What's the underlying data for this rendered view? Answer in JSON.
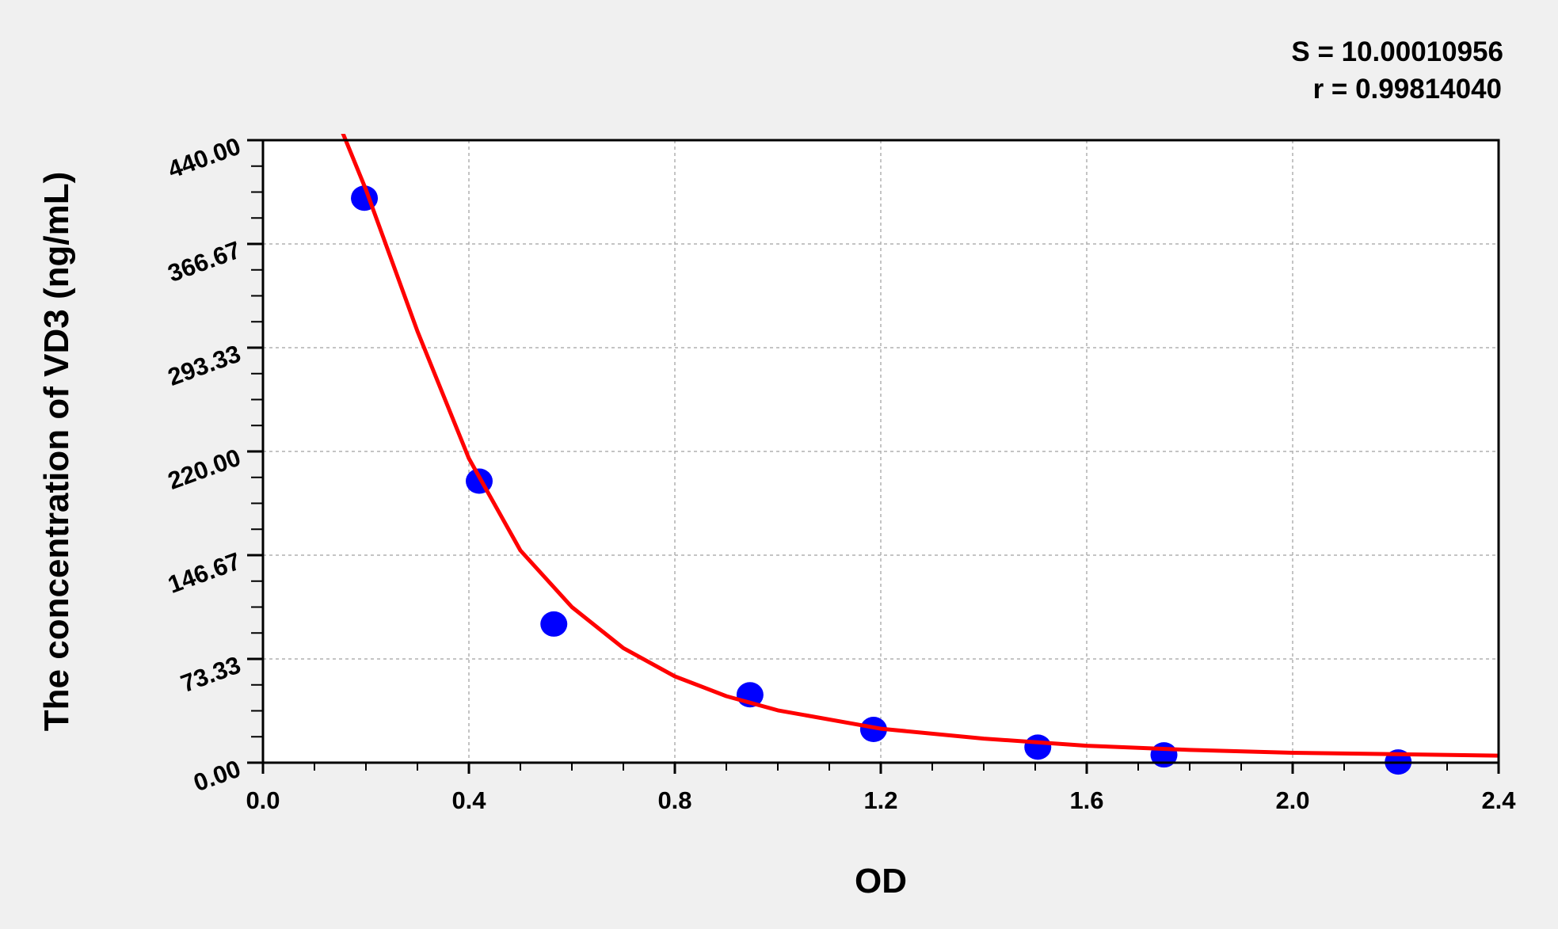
{
  "chart_data": {
    "type": "scatter",
    "xlabel": "OD",
    "ylabel": "The concentration of VD3 (ng/mL)",
    "xlim": [
      0,
      2.4
    ],
    "ylim": [
      0,
      440
    ],
    "x_ticks": [
      "0.0",
      "0.4",
      "0.8",
      "1.2",
      "1.6",
      "2.0",
      "2.4"
    ],
    "y_ticks": [
      "0.00",
      "73.33",
      "146.67",
      "220.00",
      "293.33",
      "366.67",
      "440.00"
    ],
    "grid": true,
    "annotations": [
      "S = 10.00010956",
      "r = 0.99814040"
    ],
    "series": [
      {
        "type": "scatter",
        "color": "#0000ff",
        "points": [
          [
            0.197,
            399
          ],
          [
            0.42,
            199
          ],
          [
            0.565,
            98
          ],
          [
            0.946,
            48
          ],
          [
            1.186,
            23.5
          ],
          [
            1.505,
            11
          ],
          [
            1.75,
            5.5
          ],
          [
            2.205,
            0.5
          ]
        ]
      },
      {
        "type": "line",
        "color": "#ff0000",
        "points": [
          [
            0.155,
            445
          ],
          [
            0.2,
            405
          ],
          [
            0.3,
            305
          ],
          [
            0.4,
            215
          ],
          [
            0.5,
            150
          ],
          [
            0.6,
            110
          ],
          [
            0.7,
            81
          ],
          [
            0.8,
            61
          ],
          [
            0.9,
            47
          ],
          [
            1.0,
            37
          ],
          [
            1.2,
            24
          ],
          [
            1.4,
            17
          ],
          [
            1.6,
            12
          ],
          [
            1.8,
            9
          ],
          [
            2.0,
            7
          ],
          [
            2.2,
            6
          ],
          [
            2.4,
            5
          ]
        ]
      }
    ]
  }
}
